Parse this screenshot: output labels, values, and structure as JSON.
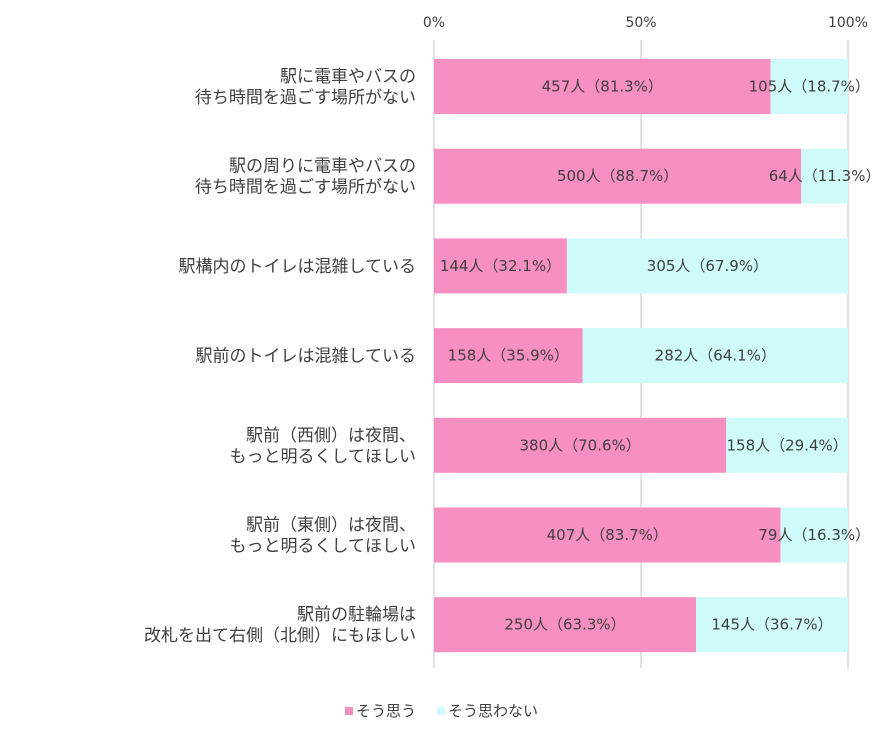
{
  "chart_data": {
    "type": "bar",
    "orientation": "horizontal",
    "stacked": "percent",
    "categories": [
      [
        "駅に電車やバスの",
        "待ち時間を過ごす場所がない"
      ],
      [
        "駅の周りに電車やバスの",
        "待ち時間を過ごす場所がない"
      ],
      [
        "駅構内のトイレは混雑している"
      ],
      [
        "駅前のトイレは混雑している"
      ],
      [
        "駅前（西側）は夜間、",
        "もっと明るくしてほしい"
      ],
      [
        "駅前（東側）は夜間、",
        "もっと明るくしてほしい"
      ],
      [
        "駅前の駐輪場は",
        "改札を出て右側（北側）にもほしい"
      ]
    ],
    "series": [
      {
        "name": "そう思う",
        "color": "#f78fc2",
        "values": [
          81.3,
          88.7,
          32.1,
          35.9,
          70.6,
          83.7,
          63.3
        ],
        "labels": [
          "457人（81.3%）",
          "500人（88.7%）",
          "144人（32.1%）",
          "158人（35.9%）",
          "380人（70.6%）",
          "407人（83.7%）",
          "250人（63.3%）"
        ]
      },
      {
        "name": "そう思わない",
        "color": "#cffcfa",
        "values": [
          18.7,
          11.3,
          67.9,
          64.1,
          29.4,
          16.3,
          36.7
        ],
        "labels": [
          "105人（18.7%）",
          "64人（11.3%）",
          "305人（67.9%）",
          "282人（64.1%）",
          "158人（29.4%）",
          "79人（16.3%）",
          "145人（36.7%）"
        ]
      }
    ],
    "xlim": [
      0,
      100
    ],
    "xticks": [
      "0%",
      "50%",
      "100%"
    ],
    "grid": true,
    "legend_position": "bottom",
    "title": "",
    "xlabel": "",
    "ylabel": ""
  }
}
